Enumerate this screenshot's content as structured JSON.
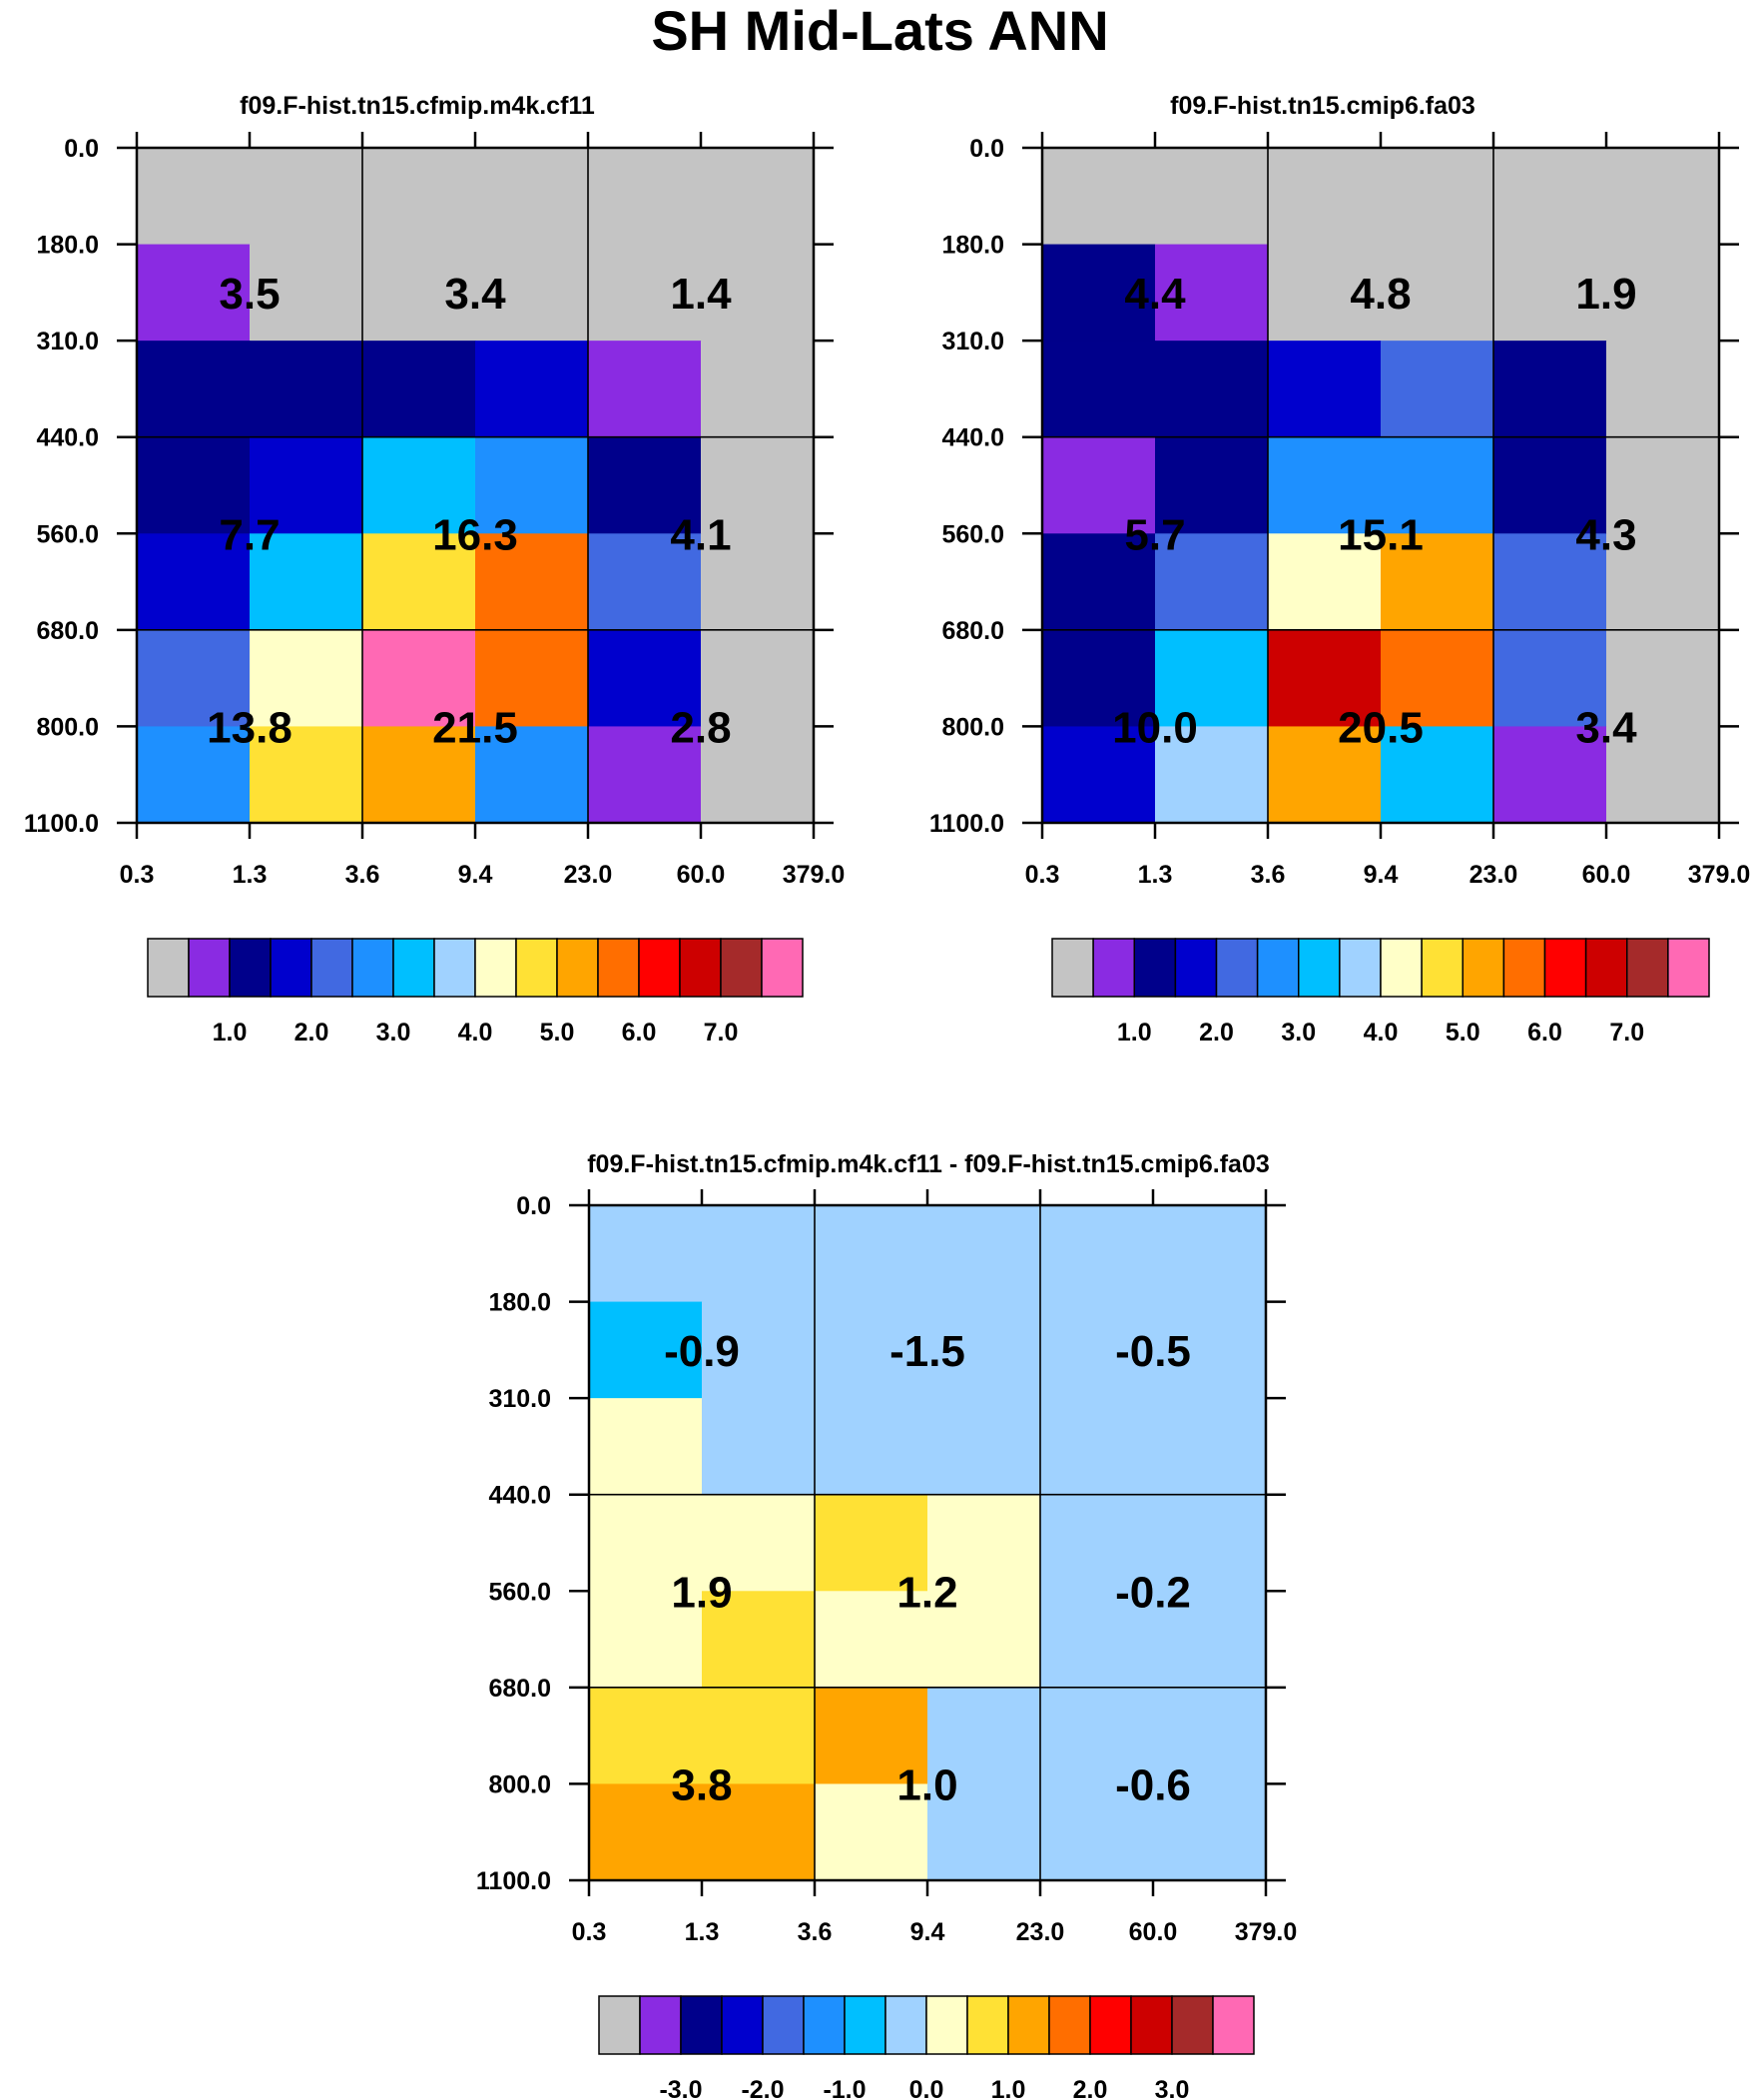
{
  "title": "SH Mid-Lats ANN",
  "palette": [
    "#c4c4c4",
    "#8a2be2",
    "#00008b",
    "#0000cd",
    "#4169e1",
    "#1e90ff",
    "#00bfff",
    "#a0d2ff",
    "#ffffc8",
    "#ffe135",
    "#ffa500",
    "#ff6e00",
    "#ff0000",
    "#cd0000",
    "#a52a2a",
    "#ff69b4"
  ],
  "chart_data": [
    {
      "type": "heatmap",
      "title": "f09.F-hist.tn15.cfmip.m4k.cf11",
      "x_ticks": [
        "0.3",
        "1.3",
        "3.6",
        "9.4",
        "23.0",
        "60.0",
        "379.0"
      ],
      "y_ticks": [
        "0.0",
        "180.0",
        "310.0",
        "440.0",
        "560.0",
        "680.0",
        "800.0",
        "1100.0"
      ],
      "cell_colors": [
        [
          0,
          0,
          0,
          0,
          0,
          0
        ],
        [
          1,
          0,
          0,
          0,
          0,
          0
        ],
        [
          2,
          2,
          2,
          3,
          1,
          0
        ],
        [
          2,
          3,
          6,
          5,
          2,
          0
        ],
        [
          3,
          6,
          9,
          11,
          4,
          0
        ],
        [
          4,
          8,
          15,
          11,
          3,
          0
        ],
        [
          5,
          9,
          10,
          5,
          1,
          0
        ]
      ],
      "box_values": [
        [
          "3.5",
          "3.4",
          "1.4"
        ],
        [
          "7.7",
          "16.3",
          "4.1"
        ],
        [
          "13.8",
          "21.5",
          "2.8"
        ]
      ],
      "colorbar_labels": [
        "1.0",
        "2.0",
        "3.0",
        "4.0",
        "5.0",
        "6.0",
        "7.0"
      ]
    },
    {
      "type": "heatmap",
      "title": "f09.F-hist.tn15.cmip6.fa03",
      "x_ticks": [
        "0.3",
        "1.3",
        "3.6",
        "9.4",
        "23.0",
        "60.0",
        "379.0"
      ],
      "y_ticks": [
        "0.0",
        "180.0",
        "310.0",
        "440.0",
        "560.0",
        "680.0",
        "800.0",
        "1100.0"
      ],
      "cell_colors": [
        [
          0,
          0,
          0,
          0,
          0,
          0
        ],
        [
          2,
          1,
          0,
          0,
          0,
          0
        ],
        [
          2,
          2,
          3,
          4,
          2,
          0
        ],
        [
          1,
          2,
          5,
          5,
          2,
          0
        ],
        [
          2,
          4,
          8,
          10,
          4,
          0
        ],
        [
          2,
          6,
          13,
          11,
          4,
          0
        ],
        [
          3,
          7,
          10,
          6,
          1,
          0
        ]
      ],
      "box_values": [
        [
          "4.4",
          "4.8",
          "1.9"
        ],
        [
          "5.7",
          "15.1",
          "4.3"
        ],
        [
          "10.0",
          "20.5",
          "3.4"
        ]
      ],
      "colorbar_labels": [
        "1.0",
        "2.0",
        "3.0",
        "4.0",
        "5.0",
        "6.0",
        "7.0"
      ]
    },
    {
      "type": "heatmap",
      "title": "f09.F-hist.tn15.cfmip.m4k.cf11 - f09.F-hist.tn15.cmip6.fa03",
      "x_ticks": [
        "0.3",
        "1.3",
        "3.6",
        "9.4",
        "23.0",
        "60.0",
        "379.0"
      ],
      "y_ticks": [
        "0.0",
        "180.0",
        "310.0",
        "440.0",
        "560.0",
        "680.0",
        "800.0",
        "1100.0"
      ],
      "cell_colors": [
        [
          7,
          7,
          7,
          7,
          7,
          7
        ],
        [
          6,
          7,
          7,
          7,
          7,
          7
        ],
        [
          8,
          7,
          7,
          7,
          7,
          7
        ],
        [
          8,
          8,
          9,
          8,
          7,
          7
        ],
        [
          8,
          9,
          8,
          8,
          7,
          7
        ],
        [
          9,
          9,
          10,
          7,
          7,
          7
        ],
        [
          10,
          10,
          8,
          7,
          7,
          7
        ]
      ],
      "box_values": [
        [
          "-0.9",
          "-1.5",
          "-0.5"
        ],
        [
          "1.9",
          "1.2",
          "-0.2"
        ],
        [
          "3.8",
          "1.0",
          "-0.6"
        ]
      ],
      "colorbar_labels": [
        "-3.0",
        "-2.0",
        "-1.0",
        "0.0",
        "1.0",
        "2.0",
        "3.0"
      ]
    }
  ]
}
